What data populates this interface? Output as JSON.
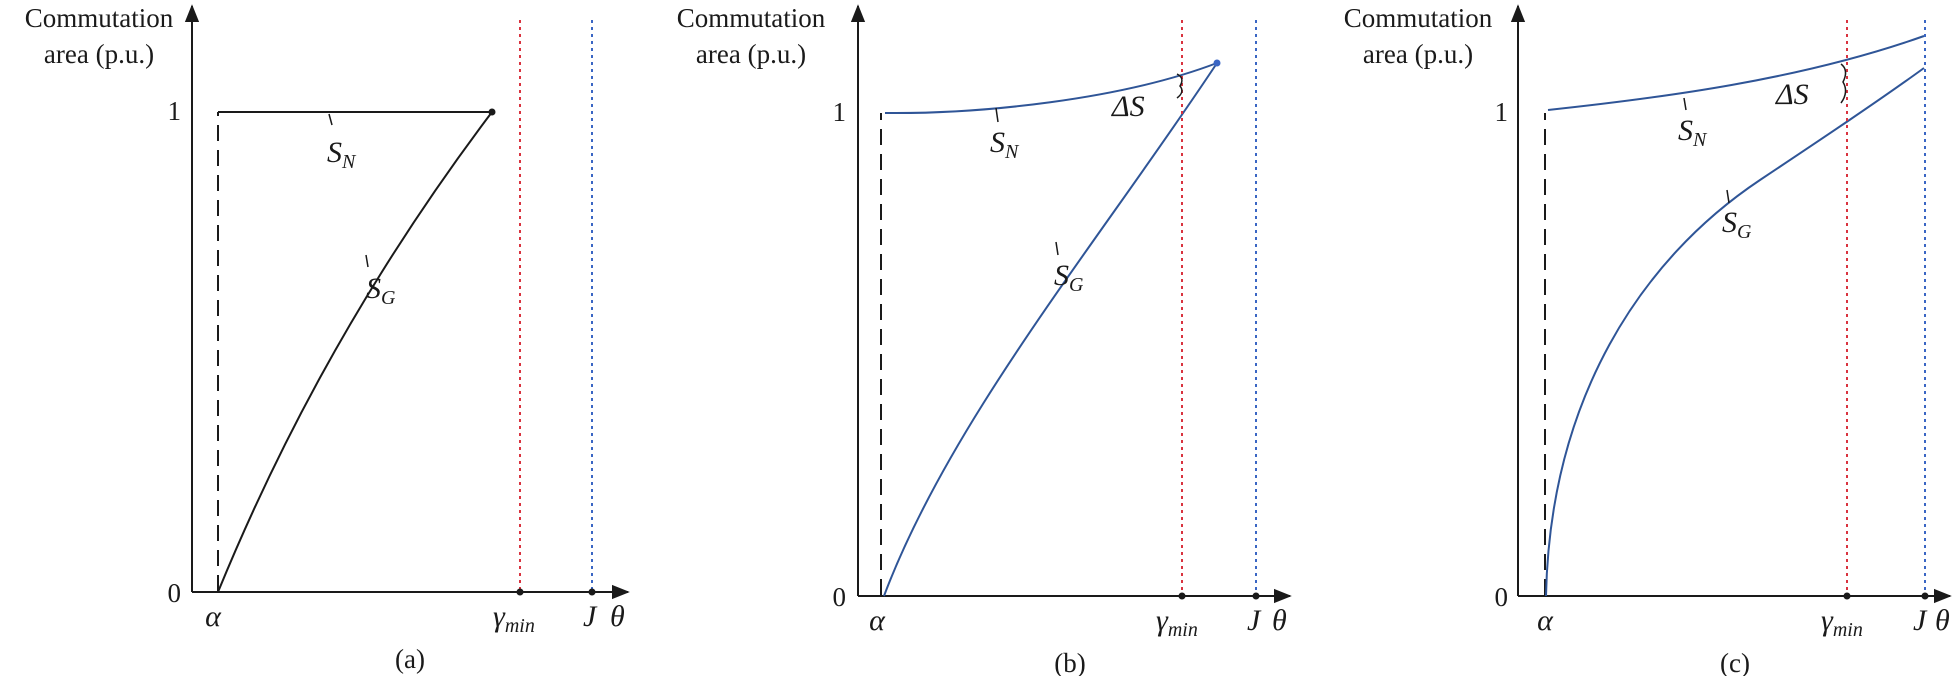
{
  "colors": {
    "black": "#1a1a1a",
    "blue": "#2f5597",
    "red": "#d9333f",
    "blueDot": "#3a66c4"
  },
  "panels": [
    {
      "caption": "(a)",
      "ylabel_line1": "Commutation",
      "ylabel_line2": "area (p.u.)",
      "y_tick_1": "1",
      "y_tick_0": "0",
      "alpha_label": "α",
      "gamma_label": "γ",
      "gamma_sub": "min",
      "j_label": "J",
      "theta_label": "θ",
      "sn_label": "S",
      "sn_sub": "N",
      "sg_label": "S",
      "sg_sub": "G"
    },
    {
      "caption": "(b)",
      "ylabel_line1": "Commutation",
      "ylabel_line2": "area (p.u.)",
      "y_tick_1": "1",
      "y_tick_0": "0",
      "alpha_label": "α",
      "gamma_label": "γ",
      "gamma_sub": "min",
      "j_label": "J",
      "theta_label": "θ",
      "sn_label": "S",
      "sn_sub": "N",
      "sg_label": "S",
      "sg_sub": "G",
      "delta_label": "ΔS"
    },
    {
      "caption": "(c)",
      "ylabel_line1": "Commutation",
      "ylabel_line2": "area (p.u.)",
      "y_tick_1": "1",
      "y_tick_0": "0",
      "alpha_label": "α",
      "gamma_label": "γ",
      "gamma_sub": "min",
      "j_label": "J",
      "theta_label": "θ",
      "sn_label": "S",
      "sn_sub": "N",
      "sg_label": "S",
      "sg_sub": "G",
      "delta_label": "ΔS"
    }
  ]
}
